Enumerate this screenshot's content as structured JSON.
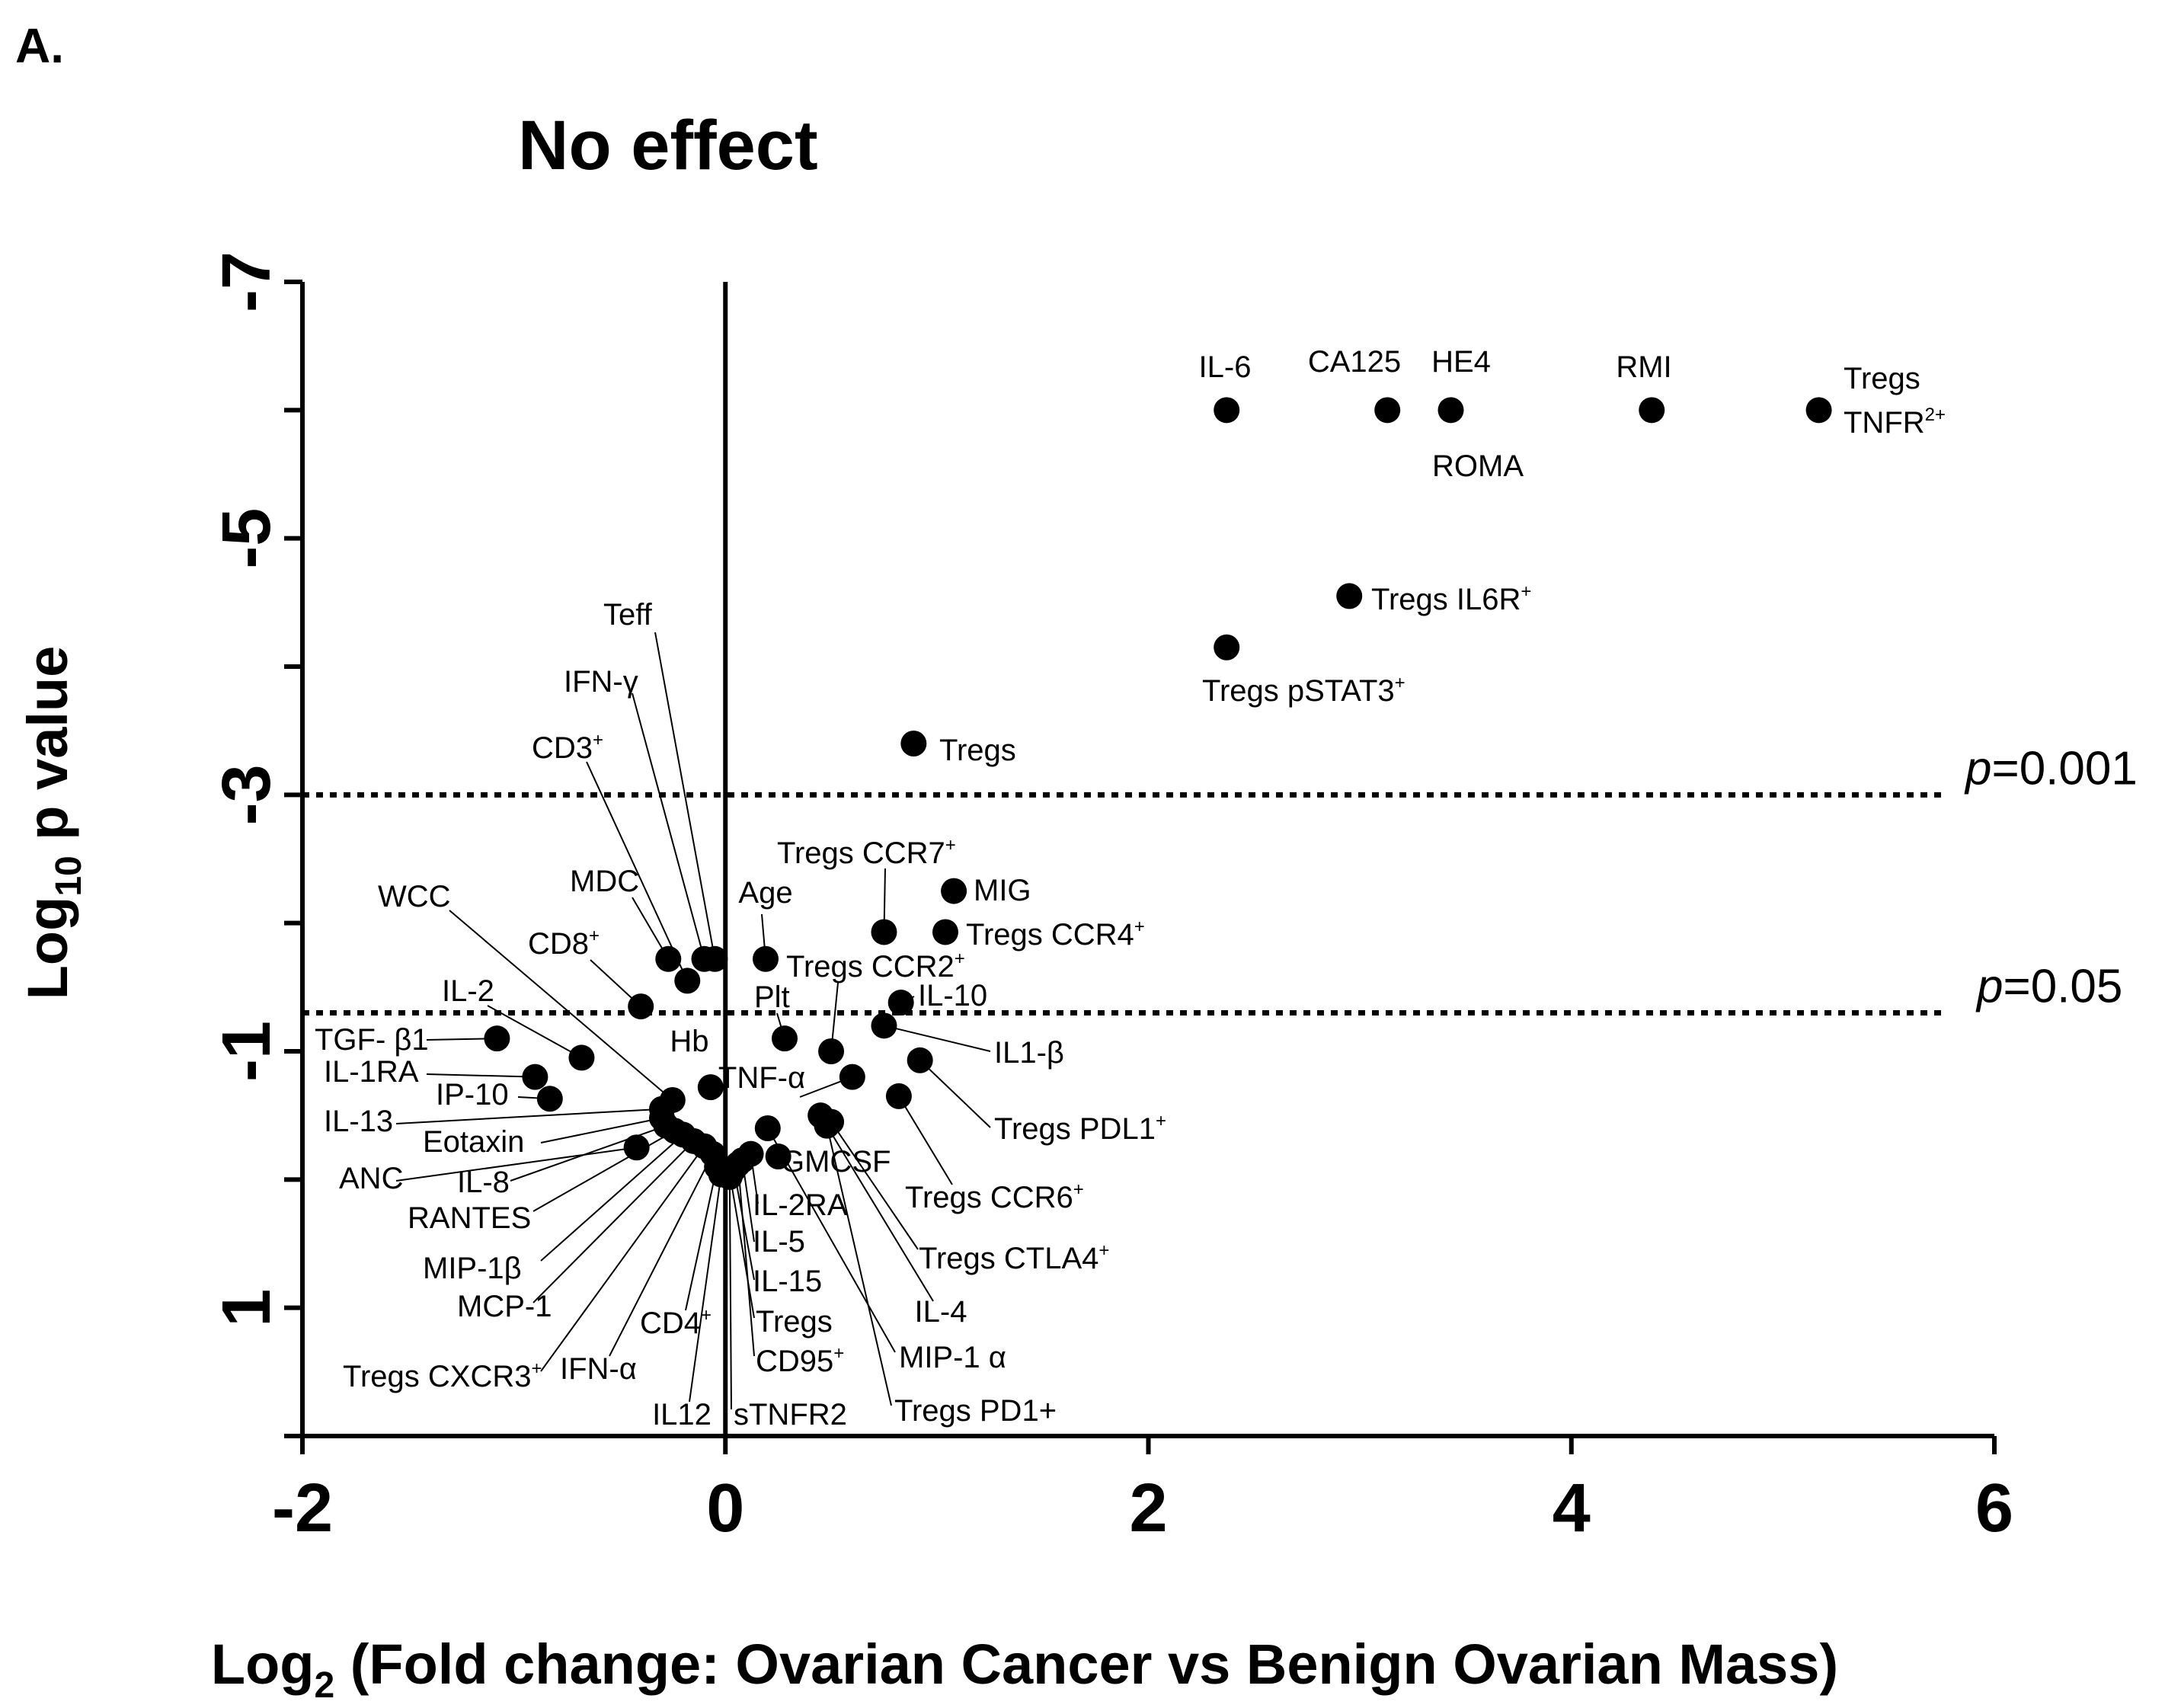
{
  "panel_label": "A.",
  "chart_data": {
    "type": "scatter",
    "title": "No effect",
    "xlabel": {
      "prefix": "Log",
      "sub": "2",
      "rest": " (Fold change: Ovarian Cancer vs Benign Ovarian Mass)"
    },
    "ylabel": {
      "prefix": "Log",
      "sub": "10",
      "rest": " p value"
    },
    "xlim": [
      -2,
      6
    ],
    "ylim": [
      2,
      -7
    ],
    "x_ticks": [
      -2,
      0,
      2,
      4,
      6
    ],
    "x_tick_labels": [
      "-2",
      "0",
      "2",
      "4",
      "6"
    ],
    "y_ticks": [
      -7,
      -5,
      -3,
      -1,
      1
    ],
    "y_tick_labels": [
      "-7",
      "-5",
      "-3",
      "-1",
      "1"
    ],
    "y_minor_ticks": [
      -7,
      -6,
      -5,
      -4,
      -3,
      -2,
      -1,
      0,
      1,
      2
    ],
    "thresholds": [
      {
        "y": -3.0,
        "p": "p",
        "text": "=0.001"
      },
      {
        "y": -1.3,
        "p": "p",
        "text": "=0.05"
      }
    ],
    "points": [
      {
        "name": "il6",
        "x": 2.37,
        "y": -6.0,
        "label": "IL-6",
        "sup": ""
      },
      {
        "name": "ca125",
        "x": 3.13,
        "y": -6.0,
        "label": "CA125",
        "sup": ""
      },
      {
        "name": "he4",
        "x": 3.43,
        "y": -6.0,
        "label": "HE4",
        "sup": ""
      },
      {
        "name": "roma",
        "x": 3.43,
        "y": -6.0,
        "label": "ROMA",
        "sup": ""
      },
      {
        "name": "rmi",
        "x": 4.38,
        "y": -6.0,
        "label": "RMI",
        "sup": ""
      },
      {
        "name": "tregs-tnfr2",
        "x": 5.17,
        "y": -6.0,
        "label": "Tregs",
        "label2": "TNFR",
        "sup": "2+"
      },
      {
        "name": "tregs-il6r",
        "x": 2.95,
        "y": -4.55,
        "label": "Tregs IL6R",
        "sup": "+"
      },
      {
        "name": "tregs-pstat3",
        "x": 2.37,
        "y": -4.15,
        "label": "Tregs pSTAT3",
        "sup": "+"
      },
      {
        "name": "tregs",
        "x": 0.89,
        "y": -3.4,
        "label": "Tregs",
        "sup": ""
      },
      {
        "name": "mig",
        "x": 1.08,
        "y": -2.25,
        "label": "MIG",
        "sup": ""
      },
      {
        "name": "tregs-ccr4",
        "x": 1.04,
        "y": -1.93,
        "label": "Tregs CCR4",
        "sup": "+"
      },
      {
        "name": "tregs-ccr7",
        "x": 0.75,
        "y": -1.93,
        "label": "Tregs CCR7",
        "sup": "+"
      },
      {
        "name": "age",
        "x": 0.19,
        "y": -1.72,
        "label": "Age",
        "sup": ""
      },
      {
        "name": "tregs-ccr2",
        "x": 0.5,
        "y": -1.0,
        "label": "Tregs CCR2",
        "sup": "+"
      },
      {
        "name": "il10",
        "x": 0.83,
        "y": -1.38,
        "label": "IL-10",
        "sup": ""
      },
      {
        "name": "il1b",
        "x": 0.75,
        "y": -1.2,
        "label": "IL1-β",
        "sup": ""
      },
      {
        "name": "tregs-pdl1",
        "x": 0.92,
        "y": -0.93,
        "label": "Tregs PDL1",
        "sup": "+"
      },
      {
        "name": "plt",
        "x": 0.28,
        "y": -1.1,
        "label": "Plt",
        "sup": ""
      },
      {
        "name": "hb",
        "x": -0.07,
        "y": -0.72,
        "label": "Hb",
        "sup": ""
      },
      {
        "name": "tnfa",
        "x": 0.6,
        "y": -0.8,
        "label": "TNF-α",
        "sup": ""
      },
      {
        "name": "tregs-ccr6",
        "x": 0.82,
        "y": -0.65,
        "label": "Tregs CCR6",
        "sup": "+"
      },
      {
        "name": "tregs-ctla4",
        "x": 0.5,
        "y": -0.45,
        "label": "Tregs CTLA4",
        "sup": "+"
      },
      {
        "name": "il4",
        "x": 0.45,
        "y": -0.5,
        "label": "IL-4",
        "sup": ""
      },
      {
        "name": "mip1a",
        "x": 0.2,
        "y": -0.4,
        "label": "MIP-1 α",
        "sup": ""
      },
      {
        "name": "tregs-pd1",
        "x": 0.48,
        "y": -0.42,
        "label": "Tregs PD1+",
        "sup": ""
      },
      {
        "name": "gmcsf",
        "x": 0.25,
        "y": -0.18,
        "label": "GMCSF",
        "sup": ""
      },
      {
        "name": "il2ra",
        "x": 0.12,
        "y": -0.2,
        "label": "IL-2RA",
        "sup": ""
      },
      {
        "name": "il5",
        "x": 0.08,
        "y": -0.15,
        "label": "IL-5",
        "sup": ""
      },
      {
        "name": "il15",
        "x": 0.04,
        "y": -0.08,
        "label": "IL-15",
        "sup": ""
      },
      {
        "name": "tregs-b",
        "x": 0.02,
        "y": -0.05,
        "label": "Tregs",
        "sup": ""
      },
      {
        "name": "cd95",
        "x": 0.06,
        "y": -0.12,
        "label": "CD95",
        "sup": "+"
      },
      {
        "name": "stnfr2",
        "x": 0.02,
        "y": -0.02,
        "label": "sTNFR2",
        "sup": ""
      },
      {
        "name": "il12",
        "x": -0.02,
        "y": -0.04,
        "label": "IL12",
        "sup": ""
      },
      {
        "name": "cd4",
        "x": -0.04,
        "y": -0.1,
        "label": "CD4",
        "sup": "+"
      },
      {
        "name": "ifna",
        "x": -0.06,
        "y": -0.2,
        "label": "IFN-α",
        "sup": ""
      },
      {
        "name": "tregs-cxcr3",
        "x": -0.1,
        "y": -0.26,
        "label": "Tregs CXCR3",
        "sup": "+"
      },
      {
        "name": "mcp1",
        "x": -0.15,
        "y": -0.3,
        "label": "MCP-1",
        "sup": ""
      },
      {
        "name": "mip1b",
        "x": -0.2,
        "y": -0.35,
        "label": "MIP-1β",
        "sup": ""
      },
      {
        "name": "rantes",
        "x": -0.24,
        "y": -0.38,
        "label": "RANTES",
        "sup": ""
      },
      {
        "name": "il8",
        "x": -0.28,
        "y": -0.42,
        "label": "IL-8",
        "sup": ""
      },
      {
        "name": "anc",
        "x": -0.42,
        "y": -0.25,
        "label": "ANC",
        "sup": ""
      },
      {
        "name": "eotaxin",
        "x": -0.3,
        "y": -0.48,
        "label": "Eotaxin",
        "sup": ""
      },
      {
        "name": "il13",
        "x": -0.3,
        "y": -0.55,
        "label": "IL-13",
        "sup": ""
      },
      {
        "name": "ip10",
        "x": -0.83,
        "y": -0.63,
        "label": "IP-10",
        "sup": ""
      },
      {
        "name": "il1ra",
        "x": -0.9,
        "y": -0.8,
        "label": "IL-1RA",
        "sup": ""
      },
      {
        "name": "tgfb1",
        "x": -1.08,
        "y": -1.1,
        "label": "TGF- β1",
        "sup": ""
      },
      {
        "name": "il2",
        "x": -0.68,
        "y": -0.95,
        "label": "IL-2",
        "sup": ""
      },
      {
        "name": "wcc",
        "x": -0.25,
        "y": -0.62,
        "label": "WCC",
        "sup": ""
      },
      {
        "name": "cd8",
        "x": -0.4,
        "y": -1.35,
        "label": "CD8",
        "sup": "+"
      },
      {
        "name": "mdc",
        "x": -0.27,
        "y": -1.72,
        "label": "MDC",
        "sup": ""
      },
      {
        "name": "cd3",
        "x": -0.18,
        "y": -1.55,
        "label": "CD3",
        "sup": "+"
      },
      {
        "name": "ifng",
        "x": -0.1,
        "y": -1.72,
        "label": "IFN-γ",
        "sup": ""
      },
      {
        "name": "teff",
        "x": -0.05,
        "y": -1.72,
        "label": "Teff",
        "sup": ""
      }
    ]
  }
}
